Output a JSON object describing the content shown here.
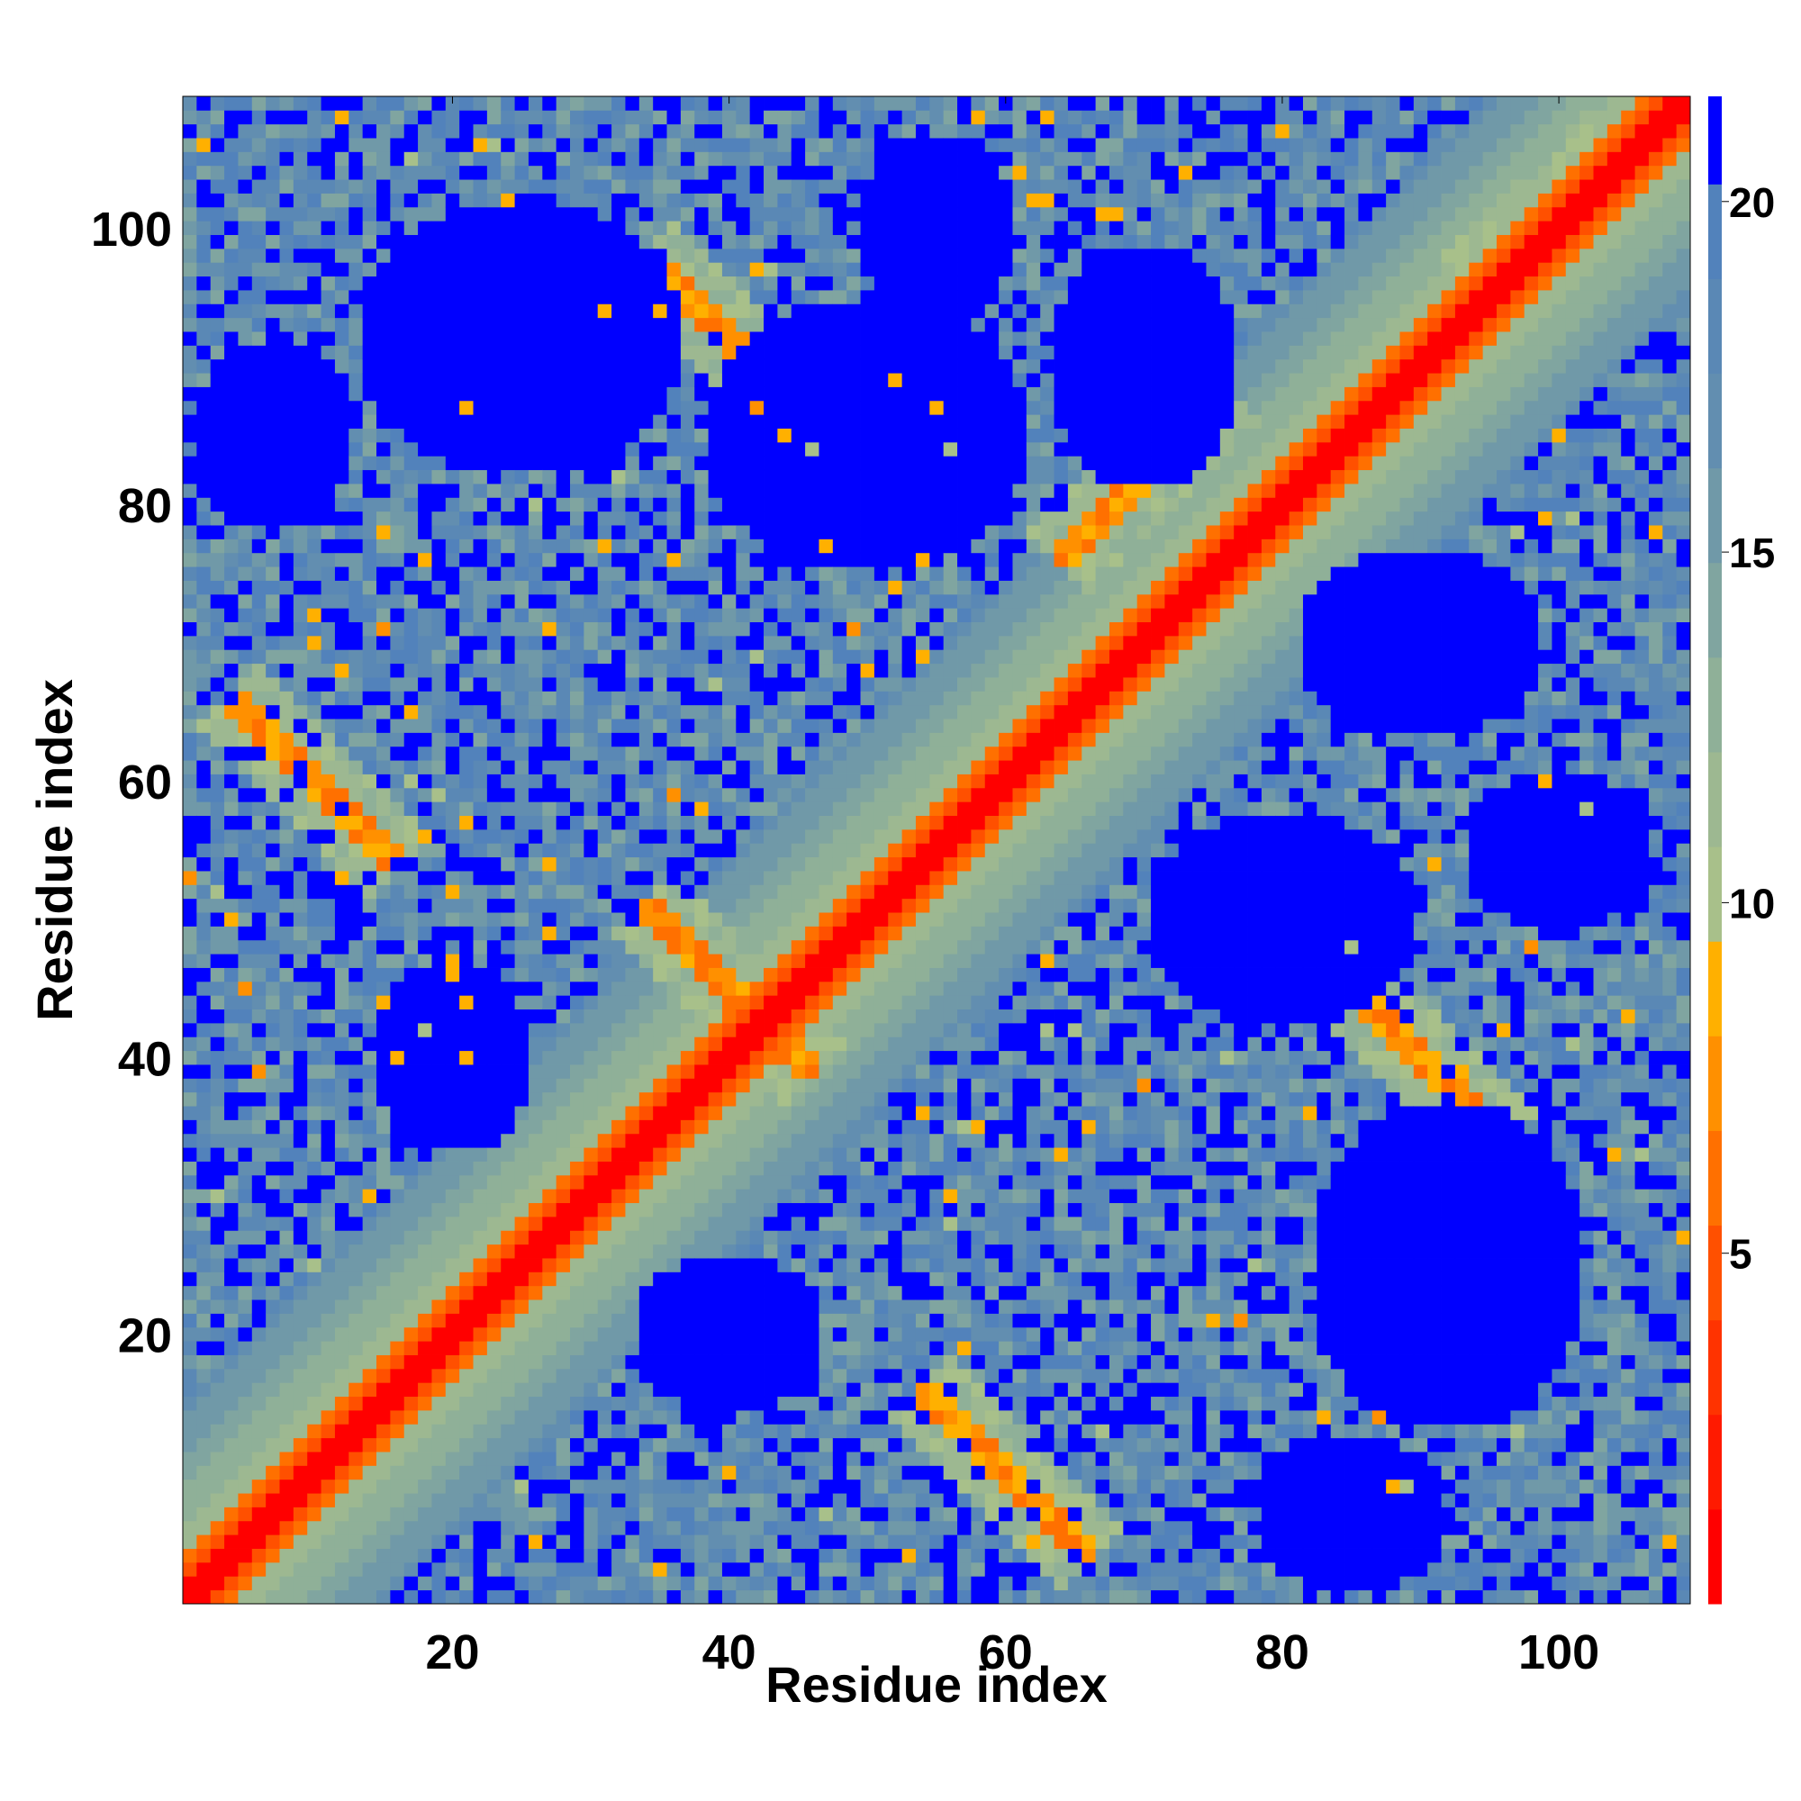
{
  "chart_data": {
    "type": "heatmap",
    "title": "",
    "xlabel": "Residue index",
    "ylabel": "Residue index",
    "n_residues": 109,
    "xlim": [
      1,
      109
    ],
    "ylim": [
      1,
      109
    ],
    "x_ticks": [
      20,
      40,
      60,
      80,
      100
    ],
    "y_ticks": [
      20,
      40,
      60,
      80,
      100
    ],
    "colorbar": {
      "ticks": [
        5,
        10,
        15,
        20
      ],
      "range": [
        0,
        21.5
      ],
      "levels": [
        {
          "min": 0,
          "max": 1.35,
          "color": "#ff0000"
        },
        {
          "min": 1.35,
          "max": 2.7,
          "color": "#ff1a00"
        },
        {
          "min": 2.7,
          "max": 4.05,
          "color": "#ff3300"
        },
        {
          "min": 4.05,
          "max": 5.4,
          "color": "#ff5000"
        },
        {
          "min": 5.4,
          "max": 6.75,
          "color": "#ff7000"
        },
        {
          "min": 6.75,
          "max": 8.1,
          "color": "#ff9000"
        },
        {
          "min": 8.1,
          "max": 9.45,
          "color": "#ffb000"
        },
        {
          "min": 9.45,
          "max": 10.8,
          "color": "#a8c08a"
        },
        {
          "min": 10.8,
          "max": 12.15,
          "color": "#9db891"
        },
        {
          "min": 12.15,
          "max": 13.5,
          "color": "#8fb098"
        },
        {
          "min": 13.5,
          "max": 14.85,
          "color": "#80a5a0"
        },
        {
          "min": 14.85,
          "max": 16.2,
          "color": "#7099a8"
        },
        {
          "min": 16.2,
          "max": 17.55,
          "color": "#628eb0"
        },
        {
          "min": 17.55,
          "max": 18.9,
          "color": "#5a88b5"
        },
        {
          "min": 18.9,
          "max": 20.25,
          "color": "#5282bb"
        },
        {
          "min": 20.25,
          "max": 21.5,
          "color": "#0000ff"
        }
      ]
    },
    "features": {
      "diagonal": "contact band along i=j",
      "cross_contacts": [
        {
          "center": [
            40,
            45
          ],
          "direction": "anti-diagonal"
        },
        {
          "center": [
            90,
            40
          ],
          "direction": "anti-diagonal"
        },
        {
          "center": [
            40,
            92
          ],
          "direction": "anti-diagonal"
        },
        {
          "center": [
            10,
            60
          ],
          "direction": "anti-diagonal"
        },
        {
          "center": [
            60,
            10
          ],
          "direction": "anti-diagonal"
        },
        {
          "center": [
            70,
            82
          ],
          "direction": "parallel"
        },
        {
          "center": [
            98,
            100
          ],
          "direction": "parallel"
        }
      ],
      "blue_voids": [
        [
          50,
          85,
          12,
          10
        ],
        [
          80,
          50,
          10,
          8
        ],
        [
          92,
          25,
          10,
          12
        ],
        [
          25,
          92,
          12,
          10
        ],
        [
          90,
          70,
          9,
          7
        ],
        [
          70,
          90,
          7,
          9
        ],
        [
          40,
          20,
          7,
          6
        ],
        [
          20,
          40,
          6,
          7
        ],
        [
          7,
          85,
          6,
          7
        ],
        [
          85,
          7,
          7,
          6
        ],
        [
          100,
          55,
          7,
          6
        ],
        [
          55,
          100,
          6,
          7
        ]
      ]
    }
  }
}
